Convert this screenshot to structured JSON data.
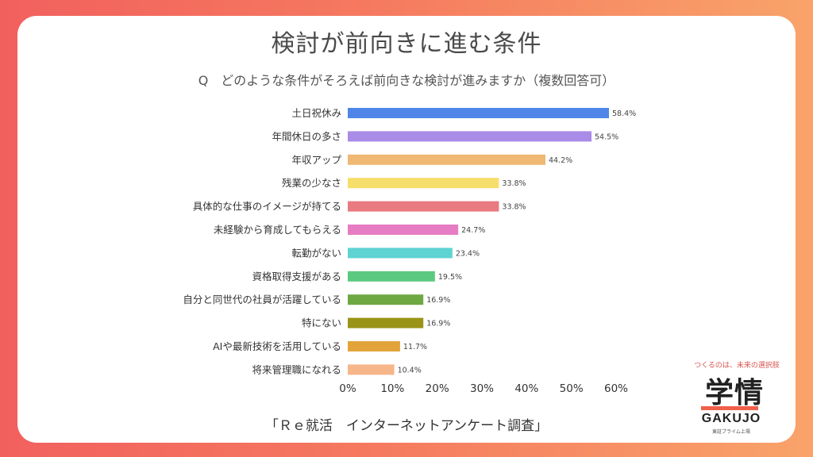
{
  "title": "検討が前向きに進む条件",
  "subtitle": "Q　どのような条件がそろえば前向きな検討が進みますか（複数回答可）",
  "footer": "「Ｒｅ就活　インターネットアンケート調査」",
  "logo": {
    "tagline": "つくるのは、未来の選択肢",
    "mark": "学情",
    "name": "GAKUJO",
    "small": "東証プライム上場"
  },
  "chart_data": {
    "type": "bar",
    "orientation": "horizontal",
    "categories": [
      "土日祝休み",
      "年間休日の多さ",
      "年収アップ",
      "残業の少なさ",
      "具体的な仕事のイメージが持てる",
      "未経験から育成してもらえる",
      "転勤がない",
      "資格取得支援がある",
      "自分と同世代の社員が活躍している",
      "特にない",
      "AIや最新技術を活用している",
      "将来管理職になれる"
    ],
    "values": [
      58.4,
      54.5,
      44.2,
      33.8,
      33.8,
      24.7,
      23.4,
      19.5,
      16.9,
      16.9,
      11.7,
      10.4
    ],
    "value_labels": [
      "58.4%",
      "54.5%",
      "44.2%",
      "33.8%",
      "33.8%",
      "24.7%",
      "23.4%",
      "19.5%",
      "16.9%",
      "16.9%",
      "11.7%",
      "10.4%"
    ],
    "colors": [
      "#4f86e8",
      "#a98be8",
      "#efb873",
      "#f7dd6a",
      "#e97a80",
      "#e67cc4",
      "#5ed3d2",
      "#5cc980",
      "#6ea843",
      "#9a9416",
      "#e2a43a",
      "#f7b58a"
    ],
    "xlim": [
      0,
      60
    ],
    "xticks": [
      "0%",
      "10%",
      "20%",
      "30%",
      "40%",
      "50%",
      "60%"
    ],
    "grid": false
  }
}
